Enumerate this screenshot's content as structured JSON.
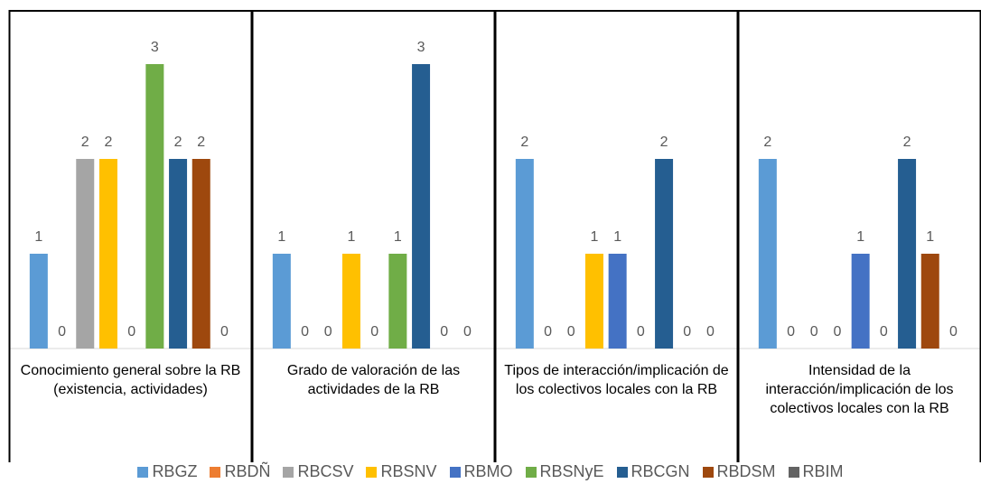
{
  "chart_data": {
    "type": "bar",
    "categories": [
      "Conocimiento general sobre la RB (existencia, actividades)",
      "Grado de valoración de las actividades de la RB",
      "Tipos de interacción/implicación de los colectivos locales con la RB",
      "Intensidad de la interacción/implicación de los colectivos locales con la RB"
    ],
    "series": [
      {
        "name": "RBGZ",
        "color": "#5b9bd5",
        "values": [
          1,
          1,
          2,
          2
        ]
      },
      {
        "name": "RBDÑ",
        "color": "#ed7d31",
        "values": [
          0,
          0,
          0,
          0
        ]
      },
      {
        "name": "RBCSV",
        "color": "#a5a5a5",
        "values": [
          2,
          0,
          0,
          0
        ]
      },
      {
        "name": "RBSNV",
        "color": "#ffc000",
        "values": [
          2,
          1,
          1,
          0
        ]
      },
      {
        "name": "RBMO",
        "color": "#4472c4",
        "values": [
          0,
          0,
          1,
          1
        ]
      },
      {
        "name": "RBSNyE",
        "color": "#70ad47",
        "values": [
          3,
          1,
          0,
          0
        ]
      },
      {
        "name": "RBCGN",
        "color": "#255e91",
        "values": [
          2,
          3,
          2,
          2
        ]
      },
      {
        "name": "RBDSM",
        "color": "#9e480e",
        "values": [
          2,
          0,
          0,
          1
        ]
      },
      {
        "name": "RBIM",
        "color": "#636363",
        "values": [
          0,
          0,
          0,
          0
        ]
      }
    ],
    "ylim": [
      0,
      3
    ],
    "legend": "bottom"
  }
}
